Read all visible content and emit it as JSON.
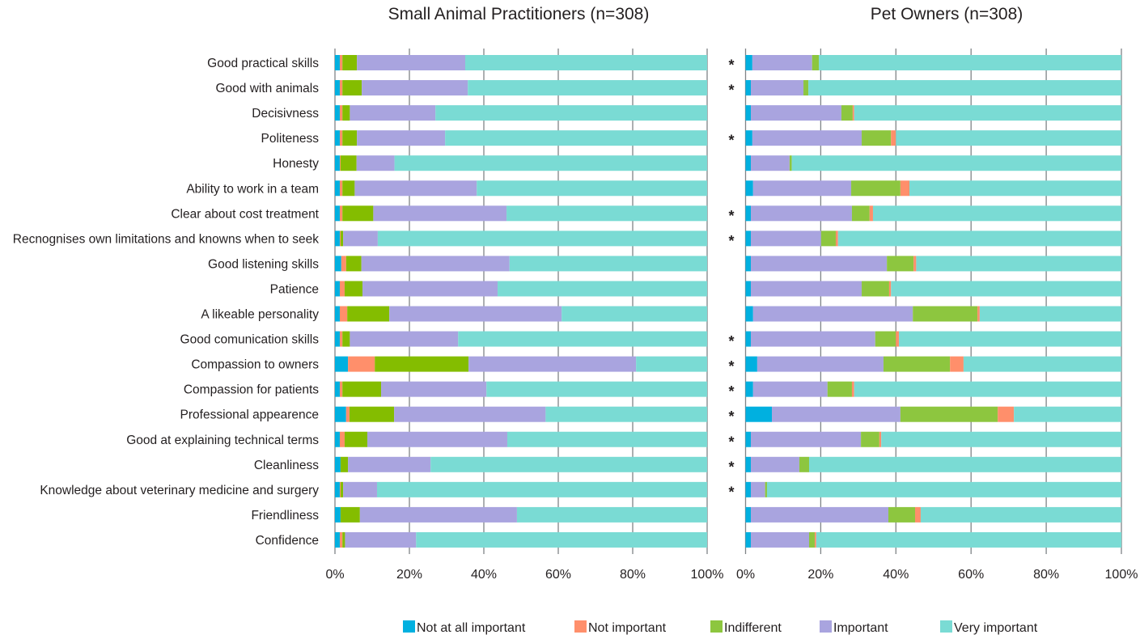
{
  "chart_data": {
    "type": "bar",
    "orientation": "horizontal",
    "stacked": true,
    "normalized": "percent",
    "categories": [
      "Good practical skills",
      "Good with animals",
      "Decisivness",
      "Politeness",
      "Honesty",
      "Ability to work in a team",
      "Clear about cost treatment",
      "Recnognises own limitations and knowns when to seek",
      "Good listening skills",
      "Patience",
      "A likeable personality",
      "Good comunication skills",
      "Compassion to owners",
      "Compassion for patients",
      "Professional appearence",
      "Good at explaining technical terms",
      "Cleanliness",
      "Knowledge about veterinary medicine and surgery",
      "Friendliness",
      "Confidence"
    ],
    "legend": {
      "position": "bottom",
      "entries": [
        {
          "key": "not_at_all",
          "label": "Not at all important",
          "color": "#00B0E0"
        },
        {
          "key": "not_important",
          "label": "Not important",
          "color": "#FF8F6B"
        },
        {
          "key": "indifferent",
          "label": "Indifferent",
          "color": "#8DC63F"
        },
        {
          "key": "important",
          "label": "Important",
          "color": "#A9A4DF"
        },
        {
          "key": "very_important",
          "label": "Very important",
          "color": "#7ADBD4"
        }
      ]
    },
    "xticks": [
      "0%",
      "20%",
      "40%",
      "60%",
      "80%",
      "100%"
    ],
    "xlim": [
      0,
      100
    ],
    "grid": "vertical",
    "panels": [
      {
        "title": "Small Animal Practitioners (n=308)",
        "segment_order": [
          "not_at_all",
          "not_important",
          "indifferent",
          "important",
          "very_important"
        ],
        "indifferent_color": "#84BD00",
        "series": {
          "not_at_all": [
            1.3,
            1.3,
            1.3,
            1.3,
            1.3,
            1.3,
            1.3,
            1.3,
            1.7,
            1.3,
            1.3,
            1.3,
            3.5,
            1.3,
            3.0,
            1.3,
            1.5,
            1.3,
            1.5,
            1.3
          ],
          "not_important": [
            0.7,
            0.7,
            0.7,
            0.7,
            0.2,
            0.7,
            0.7,
            0.2,
            1.3,
            1.3,
            2.0,
            0.7,
            7.2,
            0.7,
            0.9,
            1.3,
            0.0,
            0.2,
            0.0,
            0.7
          ],
          "indifferent": [
            3.9,
            5.2,
            2.0,
            3.9,
            4.3,
            3.3,
            8.3,
            0.7,
            4.1,
            4.8,
            11.3,
            2.0,
            25.2,
            10.4,
            12.0,
            6.1,
            2.0,
            0.7,
            5.2,
            0.7
          ],
          "important": [
            29.1,
            28.5,
            23.0,
            23.7,
            10.2,
            32.8,
            35.8,
            9.3,
            39.8,
            36.3,
            46.3,
            29.1,
            45.0,
            28.3,
            40.7,
            37.6,
            22.2,
            9.1,
            42.2,
            19.1
          ],
          "very_important": [
            65.0,
            64.3,
            73.0,
            70.4,
            84.0,
            61.9,
            53.9,
            88.5,
            53.1,
            56.3,
            39.1,
            66.9,
            19.1,
            59.3,
            43.4,
            53.7,
            74.3,
            88.7,
            51.1,
            78.2
          ]
        }
      },
      {
        "title": "Pet Owners (n=308)",
        "segment_order": [
          "not_at_all",
          "important",
          "indifferent",
          "not_important",
          "very_important"
        ],
        "indifferent_color": "#8DC63F",
        "significant_rows": [
          0,
          1,
          3,
          6,
          7,
          11,
          12,
          13,
          14,
          15,
          16,
          17
        ],
        "significance_marker": "*",
        "series": {
          "not_at_all": [
            1.8,
            1.4,
            1.4,
            1.8,
            1.4,
            2.0,
            1.4,
            1.4,
            1.4,
            1.4,
            2.0,
            1.4,
            3.1,
            2.0,
            7.0,
            1.4,
            1.4,
            1.4,
            1.4,
            1.4
          ],
          "important": [
            15.9,
            14.0,
            24.1,
            29.1,
            10.3,
            26.1,
            26.9,
            18.7,
            36.2,
            29.5,
            42.5,
            33.1,
            33.6,
            19.8,
            34.2,
            29.3,
            12.9,
            3.8,
            36.6,
            15.5
          ],
          "indifferent": [
            1.8,
            1.3,
            3.0,
            7.8,
            0.6,
            13.1,
            4.7,
            3.9,
            7.1,
            7.3,
            17.2,
            5.5,
            17.7,
            6.5,
            25.9,
            4.9,
            2.6,
            0.5,
            7.1,
            1.5
          ],
          "not_important": [
            0.0,
            0.0,
            0.4,
            1.3,
            0.0,
            2.4,
            0.9,
            0.6,
            0.7,
            0.5,
            0.6,
            0.8,
            3.6,
            0.6,
            4.3,
            0.5,
            0.0,
            0.0,
            1.5,
            0.4
          ],
          "very_important": [
            80.5,
            83.3,
            71.1,
            60.0,
            87.7,
            56.4,
            66.1,
            75.4,
            54.6,
            61.3,
            37.7,
            59.2,
            42.0,
            71.1,
            28.6,
            63.9,
            83.1,
            94.3,
            53.4,
            81.2
          ]
        }
      }
    ]
  }
}
